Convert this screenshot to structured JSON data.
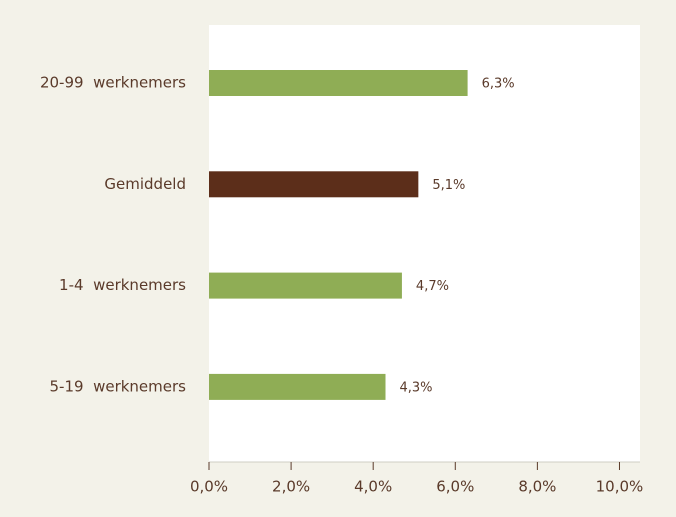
{
  "chart_data": {
    "type": "bar",
    "orientation": "horizontal",
    "categories": [
      "20-99  werknemers",
      "Gemiddeld",
      "1-4  werknemers",
      "5-19  werknemers"
    ],
    "values": [
      6.3,
      5.1,
      4.7,
      4.3
    ],
    "value_labels": [
      "6,3%",
      "5,1%",
      "4,7%",
      "4,3%"
    ],
    "colors": [
      "#8fad55",
      "#5c2e1a",
      "#8fad55",
      "#8fad55"
    ],
    "xlim": [
      0,
      10.5
    ],
    "xticks": [
      {
        "value": 0,
        "label": "0,0%"
      },
      {
        "value": 2,
        "label": "2,0%"
      },
      {
        "value": 4,
        "label": "4,0%"
      },
      {
        "value": 6,
        "label": "6,0%"
      },
      {
        "value": 8,
        "label": "8,0%"
      },
      {
        "value": 10,
        "label": "10,0%"
      }
    ]
  }
}
